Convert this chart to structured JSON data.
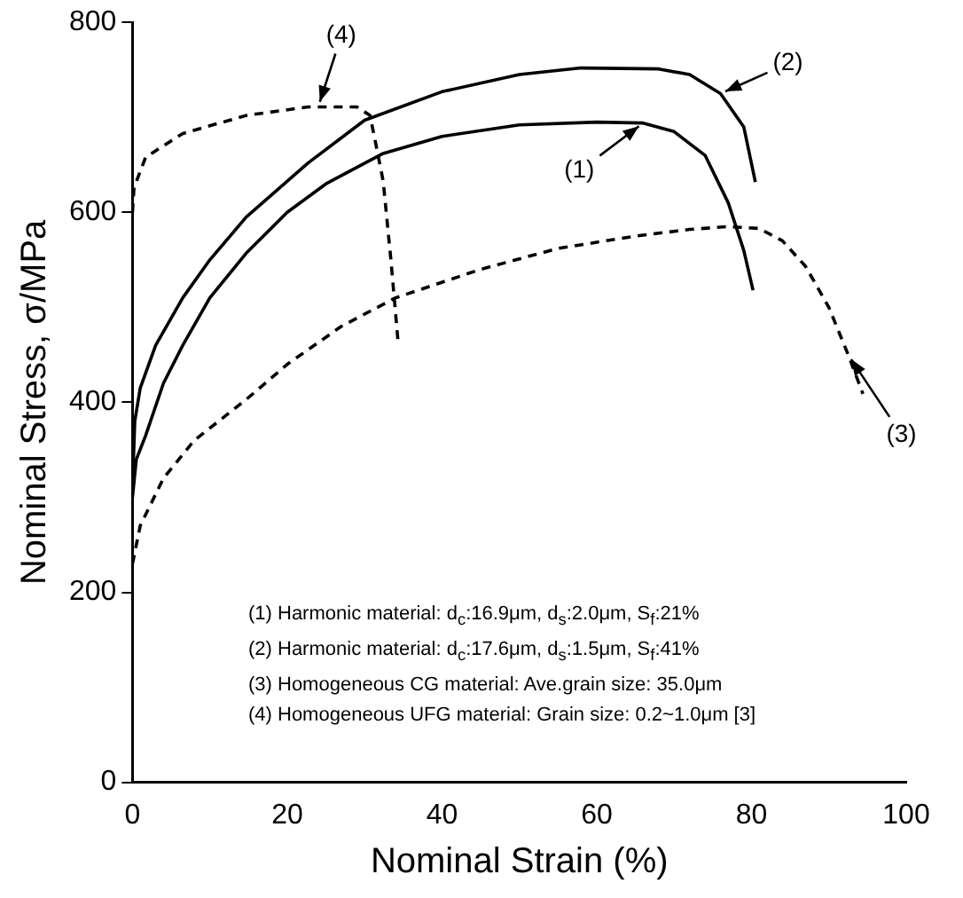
{
  "chart_data": {
    "type": "line",
    "xlabel": "Nominal Strain (%)",
    "ylabel": "Nominal Stress, σ/MPa",
    "xlim": [
      0,
      100
    ],
    "xticks": [
      0,
      20,
      40,
      60,
      80,
      100
    ],
    "ylim": [
      0,
      800
    ],
    "yticks": [
      0,
      200,
      400,
      600,
      800
    ],
    "grid": false,
    "legend": false,
    "marker": "none",
    "series": [
      {
        "color": "#000000",
        "line_style": "solid",
        "x": [
          0,
          0.5,
          1.7,
          4,
          6.5,
          10,
          14.7,
          20,
          25,
          32.4,
          40,
          50,
          60,
          66,
          70,
          74,
          77,
          79,
          80.2
        ],
        "values": [
          300,
          340,
          365,
          420,
          460,
          510,
          557,
          600,
          630,
          662,
          680,
          692,
          695,
          694,
          685,
          660,
          610,
          560,
          518
        ]
      },
      {
        "color": "#000000",
        "line_style": "solid",
        "x": [
          0,
          0.3,
          1,
          3,
          6.5,
          10,
          14.7,
          22.7,
          30,
          40,
          50,
          58,
          68,
          72,
          76,
          79,
          80.5
        ],
        "values": [
          310,
          380,
          415,
          460,
          510,
          550,
          595,
          652,
          697,
          727,
          745,
          752,
          751,
          745,
          725,
          690,
          632
        ]
      },
      {
        "color": "#000000",
        "line_style": "dashed",
        "x": [
          0,
          1,
          4,
          8,
          14.7,
          20,
          27,
          34,
          45,
          55,
          65,
          72,
          77,
          81,
          84,
          87,
          90,
          92.5,
          94.4
        ],
        "values": [
          230,
          270,
          320,
          360,
          403,
          440,
          480,
          510,
          540,
          562,
          575,
          582,
          585,
          583,
          570,
          543,
          500,
          450,
          409
        ]
      },
      {
        "color": "#000000",
        "line_style": "dashed",
        "x": [
          0,
          0.2,
          1.7,
          6.5,
          14.7,
          22.7,
          29,
          30.7,
          31.5,
          32.4,
          33.4,
          34.3
        ],
        "values": [
          600,
          626,
          658,
          683,
          702,
          711,
          711,
          702,
          670,
          633,
          550,
          466
        ]
      }
    ],
    "annotations": [
      {
        "text": "(1)",
        "x": 66,
        "y": 694
      },
      {
        "text": "(2)",
        "x": 76,
        "y": 725
      },
      {
        "text": "(3)",
        "x": 92.5,
        "y": 450
      },
      {
        "text": "(4)",
        "x": 24,
        "y": 711
      },
      "(1) Harmonic material: d$_{c}$:16.9μm, d$_{s}$:2.0μm, S$_{f}$:21%",
      "(2) Harmonic material: d$_{c}$:17.6μm, d$_{s}$:1.5μm, S$_{f}$:41%",
      "(3) Homogeneous CG material: Ave.grain size: 35.0μm",
      "(4) Homogeneous UFG material: Grain size: 0.2~1.0μm [3]"
    ]
  }
}
